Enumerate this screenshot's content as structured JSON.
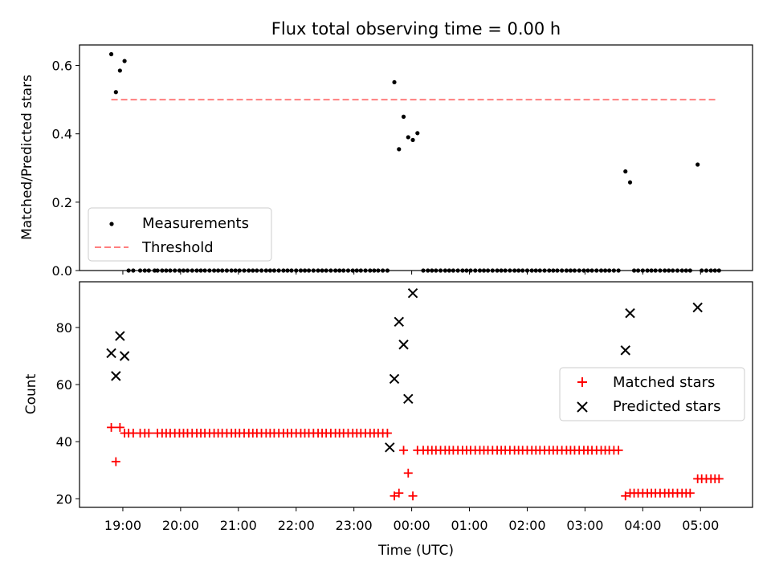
{
  "figure": {
    "title": "Flux total observing time = 0.00 h",
    "xlabel": "Time (UTC)"
  },
  "colors": {
    "measurement": "#000000",
    "threshold": "#ff7f7f",
    "matched": "#ff0000",
    "predicted": "#000000"
  },
  "chart_data": [
    {
      "type": "scatter",
      "panel": "top",
      "title": "Flux total observing time = 0.00 h",
      "xlabel": "",
      "ylabel": "Matched/Predicted stars",
      "x_unit": "hours since 19:00 UTC",
      "xlim": [
        -0.75,
        10.9
      ],
      "ylim": [
        0,
        0.66
      ],
      "yticks": [
        0.0,
        0.2,
        0.4,
        0.6
      ],
      "ytick_labels": [
        "0.0",
        "0.2",
        "0.4",
        "0.6"
      ],
      "legend_position": "lower-left",
      "series": [
        {
          "name": "Measurements",
          "marker": "dot",
          "x": [
            -0.2,
            -0.12,
            -0.05,
            0.03,
            4.7,
            4.78,
            4.86,
            4.94,
            5.02,
            5.1,
            8.7,
            8.78,
            9.95
          ],
          "y": [
            0.633,
            0.522,
            0.585,
            0.613,
            0.551,
            0.355,
            0.45,
            0.39,
            0.382,
            0.402,
            0.29,
            0.258,
            0.31
          ],
          "zeros_x": [
            0.1,
            0.18,
            0.3,
            0.38,
            0.45,
            0.55,
            0.6,
            0.68,
            0.75,
            0.82,
            0.9,
            0.98,
            1.05,
            1.12,
            1.2,
            1.28,
            1.35,
            1.42,
            1.5,
            1.58,
            1.65,
            1.72,
            1.8,
            1.88,
            1.95,
            2.02,
            2.1,
            2.18,
            2.25,
            2.32,
            2.4,
            2.48,
            2.55,
            2.62,
            2.7,
            2.78,
            2.85,
            2.92,
            3.0,
            3.08,
            3.15,
            3.22,
            3.3,
            3.38,
            3.45,
            3.52,
            3.6,
            3.68,
            3.75,
            3.82,
            3.9,
            3.98,
            4.05,
            4.12,
            4.2,
            4.28,
            4.35,
            4.42,
            4.5,
            4.58,
            5.2,
            5.28,
            5.35,
            5.42,
            5.5,
            5.58,
            5.65,
            5.72,
            5.8,
            5.88,
            5.95,
            6.02,
            6.1,
            6.18,
            6.25,
            6.32,
            6.4,
            6.48,
            6.55,
            6.62,
            6.7,
            6.78,
            6.85,
            6.92,
            7.0,
            7.08,
            7.15,
            7.22,
            7.3,
            7.38,
            7.45,
            7.52,
            7.6,
            7.68,
            7.75,
            7.82,
            7.9,
            7.98,
            8.05,
            8.12,
            8.2,
            8.28,
            8.35,
            8.42,
            8.5,
            8.58,
            8.85,
            8.92,
            9.0,
            9.08,
            9.15,
            9.22,
            9.3,
            9.38,
            9.45,
            9.52,
            9.6,
            9.68,
            9.75,
            9.82,
            10.02,
            10.1,
            10.18,
            10.25,
            10.32
          ]
        },
        {
          "name": "Threshold",
          "style": "dashed",
          "x": [
            -0.2,
            10.3
          ],
          "y": [
            0.5,
            0.5
          ]
        }
      ]
    },
    {
      "type": "scatter",
      "panel": "bottom",
      "xlabel": "Time (UTC)",
      "ylabel": "Count",
      "x_unit": "hours since 19:00 UTC",
      "xlim": [
        -0.75,
        10.9
      ],
      "ylim": [
        17,
        96
      ],
      "yticks": [
        20,
        40,
        60,
        80
      ],
      "ytick_labels": [
        "20",
        "40",
        "60",
        "80"
      ],
      "xticks": [
        0,
        1,
        2,
        3,
        4,
        5,
        6,
        7,
        8,
        9,
        10
      ],
      "xtick_labels": [
        "19:00",
        "20:00",
        "21:00",
        "22:00",
        "23:00",
        "00:00",
        "01:00",
        "02:00",
        "03:00",
        "04:00",
        "05:00"
      ],
      "legend_position": "center-right",
      "series": [
        {
          "name": "Matched stars",
          "marker": "plus",
          "x": [
            -0.2,
            -0.12,
            -0.05,
            0.03,
            0.1,
            0.18,
            0.3,
            0.38,
            0.45,
            0.6,
            0.68,
            0.75,
            0.82,
            0.9,
            0.98,
            1.05,
            1.12,
            1.2,
            1.28,
            1.35,
            1.42,
            1.5,
            1.58,
            1.65,
            1.72,
            1.8,
            1.88,
            1.95,
            2.02,
            2.1,
            2.18,
            2.25,
            2.32,
            2.4,
            2.48,
            2.55,
            2.62,
            2.7,
            2.78,
            2.85,
            2.92,
            3.0,
            3.08,
            3.15,
            3.22,
            3.3,
            3.38,
            3.45,
            3.52,
            3.6,
            3.68,
            3.75,
            3.82,
            3.9,
            3.98,
            4.05,
            4.12,
            4.2,
            4.28,
            4.35,
            4.42,
            4.5,
            4.58,
            4.7,
            4.78,
            4.86,
            4.94,
            5.02,
            5.1,
            5.2,
            5.28,
            5.35,
            5.42,
            5.5,
            5.58,
            5.65,
            5.72,
            5.8,
            5.88,
            5.95,
            6.02,
            6.1,
            6.18,
            6.25,
            6.32,
            6.4,
            6.48,
            6.55,
            6.62,
            6.7,
            6.78,
            6.85,
            6.92,
            7.0,
            7.08,
            7.15,
            7.22,
            7.3,
            7.38,
            7.45,
            7.52,
            7.6,
            7.68,
            7.75,
            7.82,
            7.9,
            7.98,
            8.05,
            8.12,
            8.2,
            8.28,
            8.35,
            8.42,
            8.5,
            8.58,
            8.7,
            8.78,
            8.85,
            8.92,
            9.0,
            9.08,
            9.15,
            9.22,
            9.3,
            9.38,
            9.45,
            9.52,
            9.6,
            9.68,
            9.75,
            9.82,
            9.95,
            10.02,
            10.1,
            10.18,
            10.25,
            10.32
          ],
          "y": [
            45,
            33,
            45,
            43,
            43,
            43,
            43,
            43,
            43,
            43,
            43,
            43,
            43,
            43,
            43,
            43,
            43,
            43,
            43,
            43,
            43,
            43,
            43,
            43,
            43,
            43,
            43,
            43,
            43,
            43,
            43,
            43,
            43,
            43,
            43,
            43,
            43,
            43,
            43,
            43,
            43,
            43,
            43,
            43,
            43,
            43,
            43,
            43,
            43,
            43,
            43,
            43,
            43,
            43,
            43,
            43,
            43,
            43,
            43,
            43,
            43,
            43,
            43,
            21,
            22,
            37,
            29,
            21,
            37,
            37,
            37,
            37,
            37,
            37,
            37,
            37,
            37,
            37,
            37,
            37,
            37,
            37,
            37,
            37,
            37,
            37,
            37,
            37,
            37,
            37,
            37,
            37,
            37,
            37,
            37,
            37,
            37,
            37,
            37,
            37,
            37,
            37,
            37,
            37,
            37,
            37,
            37,
            37,
            37,
            37,
            37,
            37,
            37,
            37,
            37,
            21,
            22,
            22,
            22,
            22,
            22,
            22,
            22,
            22,
            22,
            22,
            22,
            22,
            22,
            22,
            22,
            27,
            27,
            27,
            27,
            27,
            27
          ]
        },
        {
          "name": "Predicted stars",
          "marker": "x",
          "x": [
            -0.2,
            -0.12,
            -0.05,
            0.03,
            4.62,
            4.7,
            4.78,
            4.86,
            4.94,
            5.02,
            8.7,
            8.78,
            9.95
          ],
          "y": [
            71,
            63,
            77,
            70,
            38,
            62,
            82,
            74,
            55,
            92,
            72,
            85,
            87
          ]
        }
      ]
    }
  ]
}
